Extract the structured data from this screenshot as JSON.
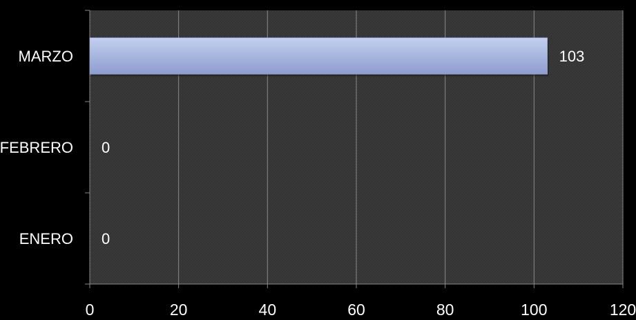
{
  "chart_data": {
    "type": "bar",
    "orientation": "horizontal",
    "categories": [
      "MARZO",
      "FEBRERO",
      "ENERO"
    ],
    "values": [
      103,
      0,
      0
    ],
    "data_labels": [
      "103",
      "0",
      "0"
    ],
    "xlim": [
      0,
      120
    ],
    "x_ticks": [
      0,
      20,
      40,
      60,
      80,
      100,
      120
    ],
    "grid": true,
    "legend": "none",
    "colors": {
      "background": "#000000",
      "plot_area": "#353535",
      "bar_top": "#b8c6e8",
      "bar_bottom": "#8f9fd0",
      "grid": "#8a8a8a",
      "text": "#ffffff"
    }
  }
}
